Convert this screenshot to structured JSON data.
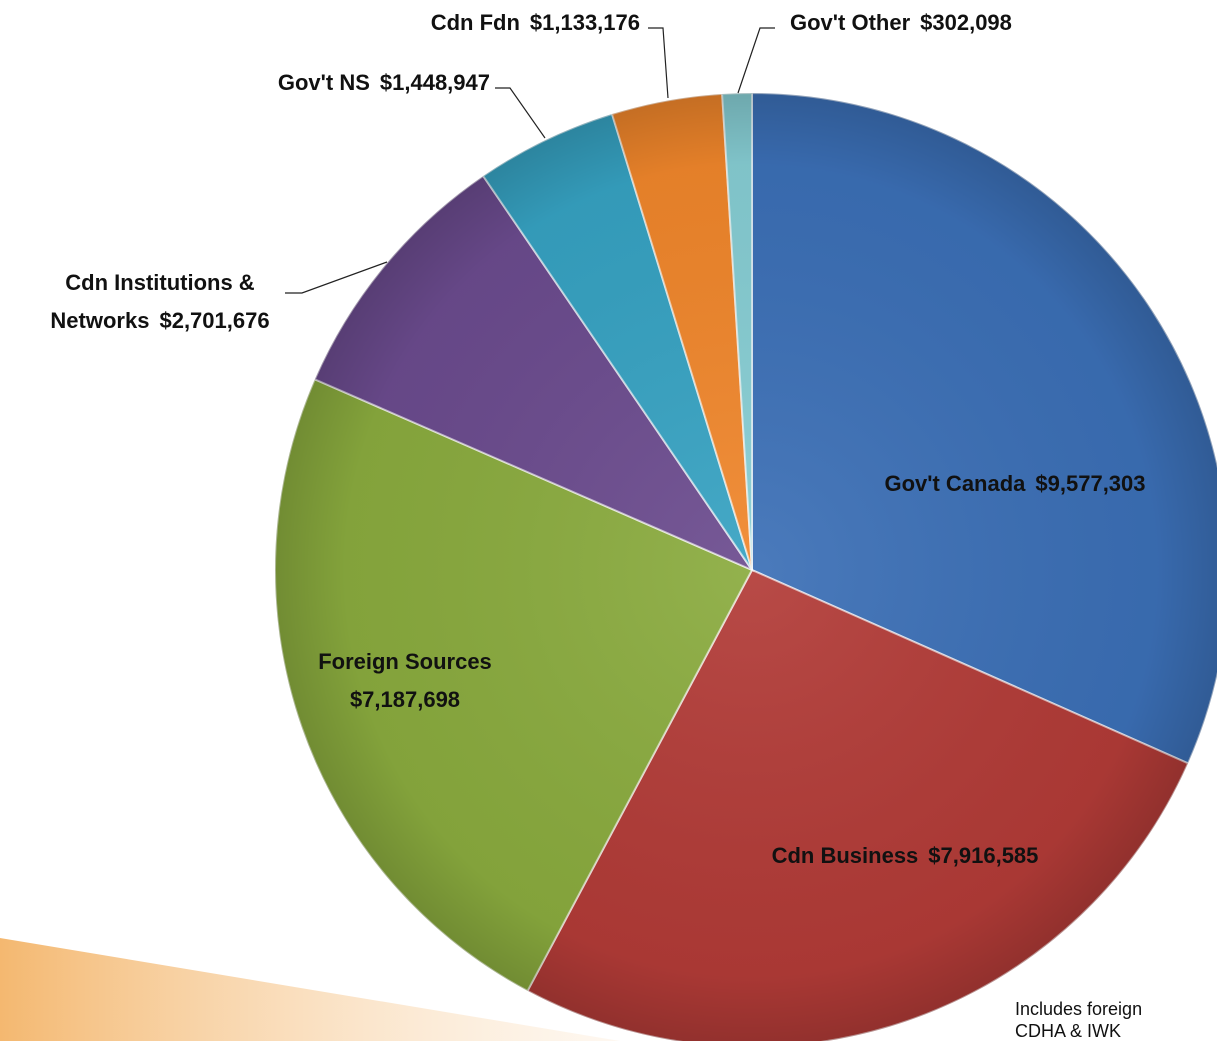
{
  "chart_data": {
    "type": "pie",
    "categories": [
      "Gov't Canada",
      "Cdn Business",
      "Foreign Sources",
      "Cdn Institutions & Networks",
      "Gov't NS",
      "Cdn Fdn",
      "Gov't Other"
    ],
    "values": [
      9577303,
      7916585,
      7187698,
      2701676,
      1448947,
      1133176,
      302098
    ],
    "value_labels": [
      "$9,577,303",
      "$7,916,585",
      "$7,187,698",
      "$2,701,676",
      "$1,448,947",
      "$1,133,176",
      "$302,098"
    ],
    "colors": [
      "#3b6fb6",
      "#b23b37",
      "#8aab3e",
      "#6b4b8e",
      "#36a2c2",
      "#f0862b",
      "#86cdd3"
    ],
    "note": [
      "Includes foreign",
      "CDHA & IWK"
    ]
  }
}
